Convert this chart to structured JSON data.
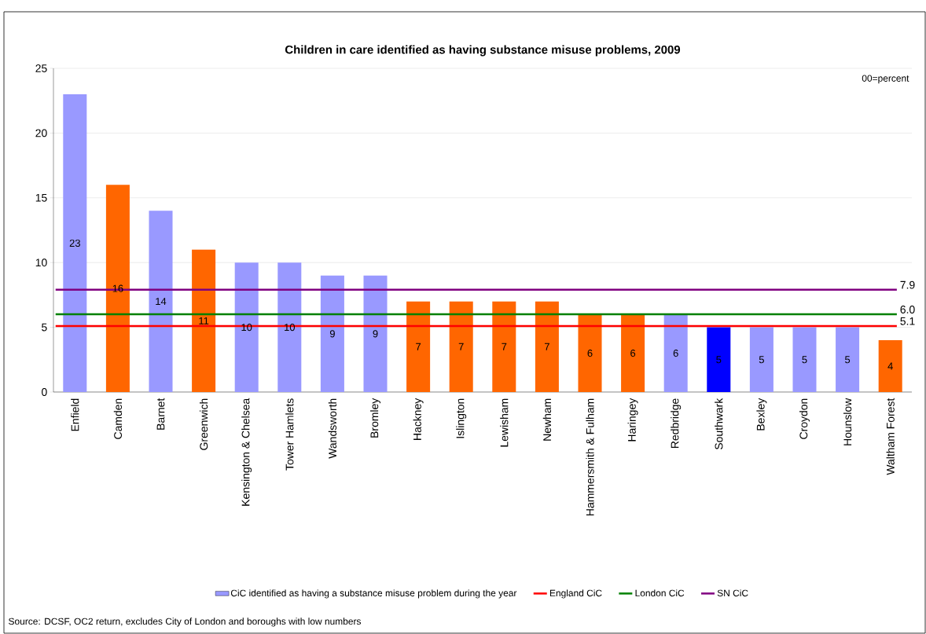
{
  "chart_data": {
    "type": "bar",
    "title": "Children in care identified as having substance misuse problems, 2009",
    "categories": [
      "Enfield",
      "Camden",
      "Barnet",
      "Greenwich",
      "Kensington & Chelsea",
      "Tower Hamlets",
      "Wandsworth",
      "Bromley",
      "Hackney",
      "Islington",
      "Lewisham",
      "Newham",
      "Hammersmith & Fulham",
      "Haringey",
      "Redbridge",
      "Southwark",
      "Bexley",
      "Croydon",
      "Hounslow",
      "Waltham Forest"
    ],
    "series": [
      {
        "name": "CiC identified as having a substance misuse problem during the year",
        "color": "#9999ff",
        "values": [
          23,
          16,
          14,
          11,
          10,
          10,
          9,
          9,
          7,
          7,
          7,
          7,
          6,
          6,
          6,
          5,
          5,
          5,
          5,
          4
        ],
        "colors": [
          "#9999ff",
          "#ff6600",
          "#9999ff",
          "#ff6600",
          "#9999ff",
          "#9999ff",
          "#9999ff",
          "#9999ff",
          "#ff6600",
          "#ff6600",
          "#ff6600",
          "#ff6600",
          "#ff6600",
          "#ff6600",
          "#9999ff",
          "#0000ff",
          "#9999ff",
          "#9999ff",
          "#9999ff",
          "#ff6600"
        ]
      }
    ],
    "data_labels": true,
    "ylim": [
      0,
      25
    ],
    "yticks": [
      0,
      5,
      10,
      15,
      20,
      25
    ],
    "grid": "y",
    "legend": "bottom",
    "ref_lines": [
      {
        "axis": "y",
        "value": 5.1,
        "label": "England CiC",
        "color": "#ff0000"
      },
      {
        "axis": "y",
        "value": 6.0,
        "label": "London CiC",
        "color": "#008000"
      },
      {
        "axis": "y",
        "value": 7.9,
        "label": "SN CiC",
        "color": "#800080"
      }
    ],
    "annotations": [
      "5.1",
      "6.0",
      "7.9",
      "00=percent",
      "Source: DCSF, OC2 return, excludes City of London and boroughs with low numbers"
    ]
  }
}
